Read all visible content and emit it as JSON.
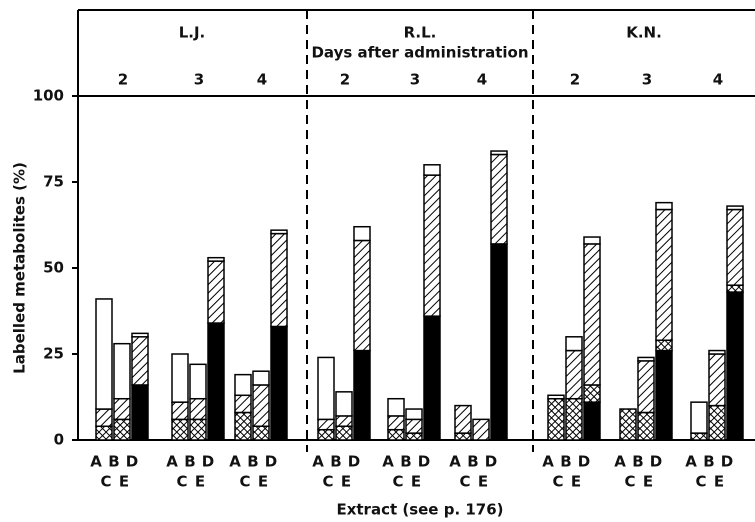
{
  "chart_data": {
    "type": "stacked_bar",
    "ylabel": "Labelled metabolites (%)",
    "xlabel": "Extract (see p. 176)",
    "header_label": "Days after administration",
    "panels": [
      {
        "name": "L.J.",
        "days": [
          "2",
          "3",
          "4"
        ]
      },
      {
        "name": "R.L.",
        "days": [
          "2",
          "3",
          "4"
        ]
      },
      {
        "name": "K.N.",
        "days": [
          "2",
          "3",
          "4"
        ]
      }
    ],
    "extracts_top": [
      "A",
      "B",
      "D"
    ],
    "extracts_bottom": [
      "C",
      "E"
    ],
    "ylim": [
      0,
      100
    ],
    "yticks": [
      0,
      25,
      50,
      75,
      100
    ],
    "series": [
      {
        "pattern": "solid",
        "color": "#000000",
        "values": [
          0,
          0,
          16,
          0,
          0,
          34,
          0,
          0,
          33,
          0,
          0,
          26,
          0,
          0,
          36,
          0,
          0,
          57,
          0,
          0,
          11,
          0,
          0,
          26,
          0,
          0,
          43
        ]
      },
      {
        "pattern": "crosshatch",
        "color": "#000000",
        "values": [
          4,
          6,
          0,
          6,
          6,
          0,
          8,
          4,
          0,
          3,
          4,
          0,
          3,
          2,
          0,
          2,
          0,
          0,
          12,
          12,
          5,
          9,
          8,
          3,
          2,
          10,
          2
        ]
      },
      {
        "pattern": "hatch",
        "color": "#000000",
        "values": [
          5,
          6,
          14,
          5,
          6,
          18,
          5,
          12,
          27,
          3,
          3,
          32,
          4,
          4,
          41,
          8,
          6,
          26,
          0,
          14,
          41,
          0,
          15,
          38,
          0,
          15,
          22
        ]
      },
      {
        "pattern": "white",
        "color": "#ffffff",
        "values": [
          32,
          16,
          1,
          14,
          10,
          1,
          6,
          4,
          1,
          18,
          7,
          4,
          5,
          3,
          3,
          0,
          0,
          1,
          1,
          4,
          2,
          0,
          1,
          2,
          9,
          1,
          1
        ]
      }
    ]
  }
}
